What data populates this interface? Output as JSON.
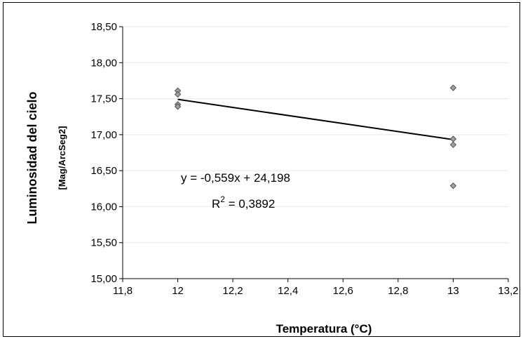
{
  "chart_data": {
    "type": "scatter",
    "title": "",
    "xlabel": "Temperatura (°C)",
    "ylabel": "Luminosidad del cielo",
    "ylabel_unit": "[Mag/ArcSeg2]",
    "xlim": [
      11.8,
      13.2
    ],
    "ylim": [
      15.0,
      18.5
    ],
    "x_ticks": [
      "11,8",
      "12",
      "12,2",
      "12,4",
      "12,6",
      "12,8",
      "13",
      "13,2"
    ],
    "x_tick_values": [
      11.8,
      12.0,
      12.2,
      12.4,
      12.6,
      12.8,
      13.0,
      13.2
    ],
    "y_ticks": [
      "15,00",
      "15,50",
      "16,00",
      "16,50",
      "17,00",
      "17,50",
      "18,00",
      "18,50"
    ],
    "y_tick_values": [
      15.0,
      15.5,
      16.0,
      16.5,
      17.0,
      17.5,
      18.0,
      18.5
    ],
    "grid": true,
    "points": [
      {
        "x": 12,
        "y": 17.61
      },
      {
        "x": 12,
        "y": 17.56
      },
      {
        "x": 12,
        "y": 17.42
      },
      {
        "x": 12,
        "y": 17.39
      },
      {
        "x": 13,
        "y": 17.65
      },
      {
        "x": 13,
        "y": 16.94
      },
      {
        "x": 13,
        "y": 16.86
      },
      {
        "x": 13,
        "y": 16.29
      }
    ],
    "trendline": {
      "slope": -0.559,
      "intercept": 24.198,
      "x_range": [
        12,
        13
      ]
    },
    "equation": "y = -0,559x + 24,198",
    "r2_prefix": "R",
    "r2_sup": "2",
    "r2_value": " = 0,3892",
    "colors": {
      "marker_fill": "#a0a0a0",
      "marker_stroke": "#505050",
      "gridline": "#e6e6e6",
      "trendline": "#000000",
      "frame": "#000000"
    }
  }
}
